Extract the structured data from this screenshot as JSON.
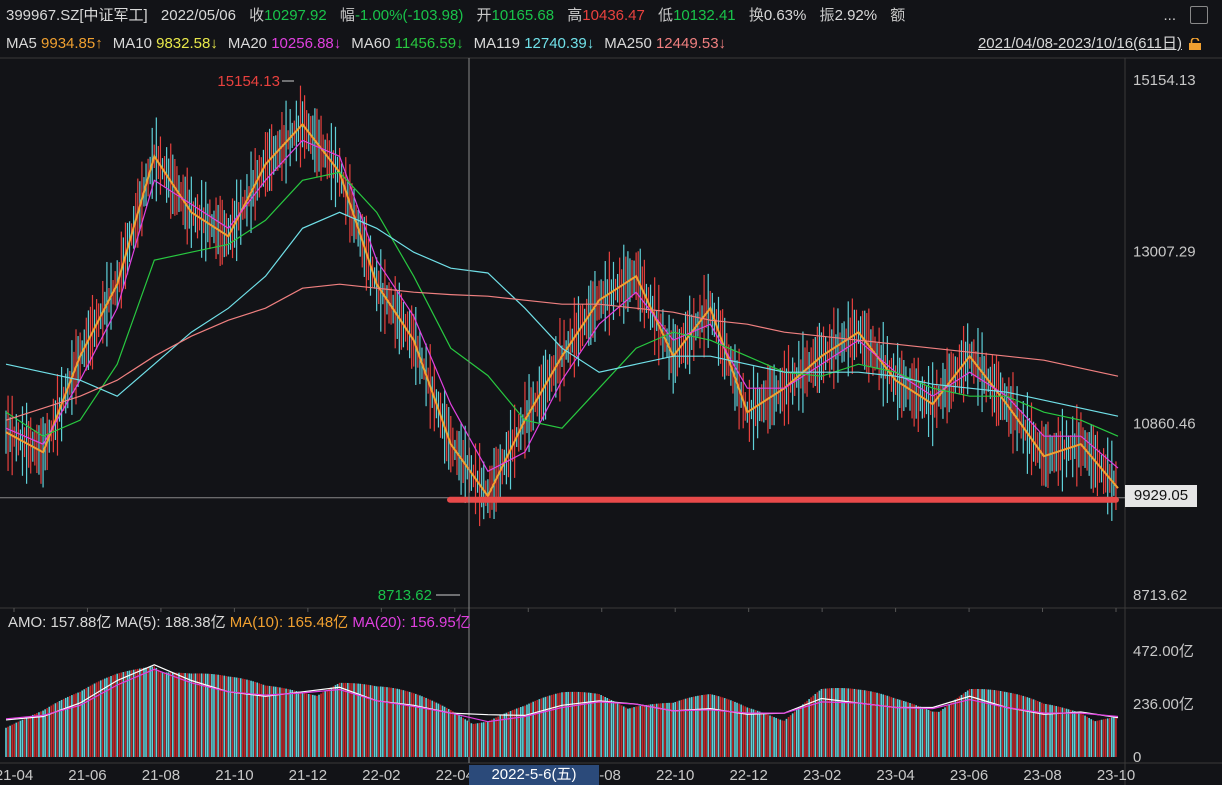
{
  "info": {
    "code": "399967.SZ[中证军工]",
    "date": "2022/05/06",
    "close_label": "收",
    "close": "10297.92",
    "chg_label": "幅",
    "chg": "-1.00%(-103.98)",
    "open_label": "开",
    "open": "10165.68",
    "high_label": "高",
    "high": "10436.47",
    "low_label": "低",
    "low": "10132.41",
    "turn_label": "换",
    "turn": "0.63%",
    "amp_label": "振",
    "amp": "2.92%",
    "amt_label": "额",
    "more": "..."
  },
  "ma_bar": {
    "items": [
      {
        "name": "MA5",
        "value": "9934.85↑",
        "color": "#f0a030"
      },
      {
        "name": "MA10",
        "value": "9832.58↓",
        "color": "#e8e84a"
      },
      {
        "name": "MA20",
        "value": "10256.88↓",
        "color": "#e040e0"
      },
      {
        "name": "MA60",
        "value": "11456.59↓",
        "color": "#28c840"
      },
      {
        "name": "MA119",
        "value": "12740.39↓",
        "color": "#70e0e8"
      },
      {
        "name": "MA250",
        "value": "12449.53↓",
        "color": "#f08080"
      }
    ],
    "range": "2021/04/08-2023/10/16(611日)"
  },
  "amo_bar": {
    "amo": "AMO: 157.88亿",
    "ma5": "MA(5): 188.38亿",
    "ma10": "MA(10): 165.48亿",
    "ma20": "MA(20): 156.95亿"
  },
  "colors": {
    "up": "#e8413e",
    "down": "#19c34a",
    "bg": "#121317",
    "support": "#e84a4a"
  },
  "cursor_date": "2022-5-6(五)",
  "price_tag": "9929.05",
  "chart_data": {
    "type": "line",
    "title": "",
    "y_ticks": [
      "15154.13",
      "13007.29",
      "10860.46",
      "8713.62"
    ],
    "ylim": [
      8713.62,
      15154.13
    ],
    "annotations": {
      "high": "15154.13",
      "low": "8713.62"
    },
    "support_level": 9929.05,
    "x_tick_labels": [
      "21-04",
      "21-06",
      "21-08",
      "21-10",
      "21-12",
      "22-02",
      "22-04",
      "22-06",
      "22-08",
      "22-10",
      "22-12",
      "23-02",
      "23-04",
      "23-06",
      "23-08",
      "23-10"
    ],
    "x": [
      "2021-04",
      "2021-05",
      "2021-06",
      "2021-07",
      "2021-08",
      "2021-09",
      "2021-10",
      "2021-11",
      "2021-12",
      "2022-01",
      "2022-02",
      "2022-03",
      "2022-04",
      "2022-05",
      "2022-06",
      "2022-07",
      "2022-08",
      "2022-09",
      "2022-10",
      "2022-11",
      "2022-12",
      "2023-01",
      "2023-02",
      "2023-03",
      "2023-04",
      "2023-05",
      "2023-06",
      "2023-07",
      "2023-08",
      "2023-09",
      "2023-10"
    ],
    "series": [
      {
        "name": "MA5",
        "color": "#f0a030",
        "values": [
          10750,
          10500,
          11700,
          12600,
          14200,
          13500,
          13200,
          14100,
          14600,
          14000,
          12600,
          11900,
          10600,
          9950,
          10900,
          11700,
          12400,
          12700,
          11700,
          12300,
          11000,
          11300,
          11700,
          12000,
          11400,
          11100,
          11700,
          11100,
          10450,
          10600,
          10050
        ]
      },
      {
        "name": "MA20",
        "color": "#e040e0",
        "values": [
          10800,
          10600,
          11400,
          12300,
          13900,
          13600,
          13300,
          13900,
          14400,
          14200,
          12900,
          12200,
          11100,
          10260,
          10500,
          11400,
          12100,
          12500,
          11900,
          12100,
          11300,
          11300,
          11600,
          11900,
          11500,
          11200,
          11500,
          11200,
          10700,
          10700,
          10300
        ]
      },
      {
        "name": "MA60",
        "color": "#28c840",
        "values": [
          11000,
          10700,
          10900,
          11600,
          12900,
          13000,
          13100,
          13400,
          13900,
          14000,
          13500,
          12700,
          11800,
          11457,
          10900,
          10800,
          11300,
          11800,
          12000,
          11900,
          11700,
          11500,
          11450,
          11600,
          11500,
          11300,
          11200,
          11200,
          11000,
          10900,
          10700
        ]
      },
      {
        "name": "MA119",
        "color": "#70e0e8",
        "values": [
          11600,
          11500,
          11400,
          11200,
          11600,
          12000,
          12300,
          12700,
          13300,
          13500,
          13300,
          13000,
          12800,
          12740,
          12300,
          11800,
          11500,
          11600,
          11700,
          11700,
          11600,
          11500,
          11500,
          11500,
          11450,
          11350,
          11300,
          11250,
          11150,
          11050,
          10950
        ]
      },
      {
        "name": "MA250",
        "color": "#f08080",
        "values": [
          10900,
          11050,
          11200,
          11400,
          11700,
          11950,
          12150,
          12300,
          12550,
          12600,
          12550,
          12500,
          12470,
          12450,
          12400,
          12350,
          12350,
          12300,
          12250,
          12150,
          12100,
          12000,
          11950,
          11900,
          11850,
          11800,
          11750,
          11700,
          11650,
          11550,
          11450
        ]
      }
    ],
    "volume": {
      "y_ticks": [
        "472.00亿",
        "236.00亿",
        "0"
      ],
      "ylim": [
        0,
        520
      ],
      "values": [
        160,
        175,
        230,
        330,
        420,
        350,
        300,
        270,
        290,
        320,
        260,
        230,
        200,
        160,
        180,
        230,
        260,
        240,
        200,
        220,
        190,
        190,
        270,
        240,
        220,
        220,
        280,
        230,
        190,
        200,
        170
      ],
      "ma5": [
        165,
        180,
        240,
        340,
        410,
        340,
        290,
        270,
        290,
        310,
        250,
        230,
        195,
        188,
        185,
        230,
        250,
        235,
        205,
        215,
        190,
        195,
        260,
        240,
        220,
        220,
        270,
        220,
        190,
        200,
        175
      ],
      "ma20": [
        170,
        185,
        230,
        320,
        390,
        330,
        290,
        275,
        285,
        300,
        250,
        225,
        195,
        157,
        180,
        220,
        245,
        235,
        205,
        210,
        195,
        195,
        245,
        240,
        220,
        215,
        255,
        220,
        195,
        195,
        180
      ]
    }
  }
}
